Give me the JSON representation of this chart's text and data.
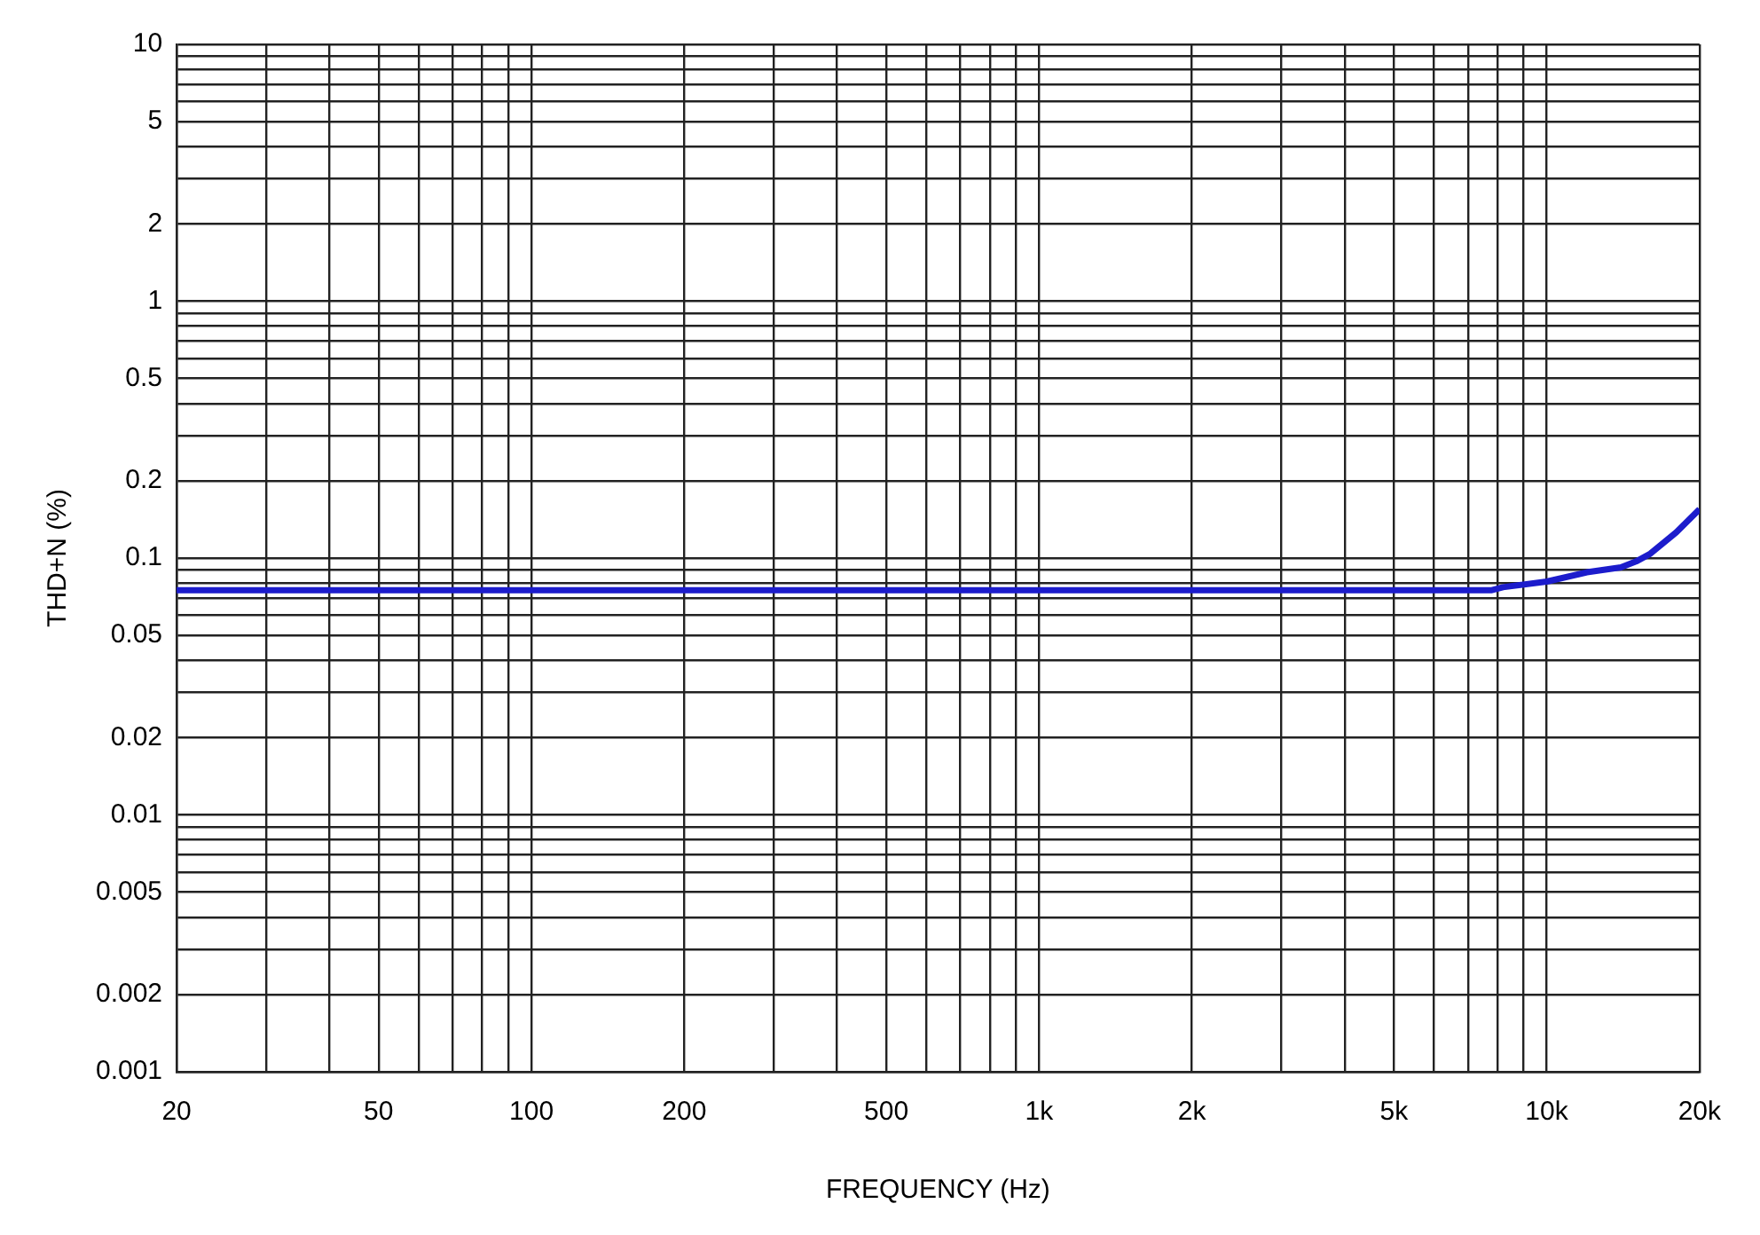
{
  "chart_data": {
    "type": "line",
    "xlabel": "FREQUENCY (Hz)",
    "ylabel": "THD+N (%)",
    "log": "xy",
    "grid": true,
    "legend": false,
    "marker": "none",
    "line_style": "solid",
    "xlim": [
      20,
      20000
    ],
    "ylim": [
      0.001,
      10
    ],
    "xticks": [
      20,
      {
        "value": 30,
        "label": null
      },
      {
        "value": 40,
        "label": null
      },
      50,
      {
        "value": 60,
        "label": null
      },
      {
        "value": 70,
        "label": null
      },
      {
        "value": 80,
        "label": null
      },
      {
        "value": 90,
        "label": null
      },
      100,
      200,
      {
        "value": 300,
        "label": null
      },
      {
        "value": 400,
        "label": null
      },
      500,
      {
        "value": 600,
        "label": null
      },
      {
        "value": 700,
        "label": null
      },
      {
        "value": 800,
        "label": null
      },
      {
        "value": 900,
        "label": null
      },
      {
        "value": 1000,
        "label": "1k"
      },
      {
        "value": 2000,
        "label": "2k"
      },
      {
        "value": 3000,
        "label": null
      },
      {
        "value": 4000,
        "label": null
      },
      {
        "value": 5000,
        "label": "5k"
      },
      {
        "value": 6000,
        "label": null
      },
      {
        "value": 7000,
        "label": null
      },
      {
        "value": 8000,
        "label": null
      },
      {
        "value": 9000,
        "label": null
      },
      {
        "value": 10000,
        "label": "10k"
      },
      {
        "value": 20000,
        "label": "20k"
      }
    ],
    "yticks": [
      0.001,
      0.002,
      {
        "value": 0.003,
        "label": null
      },
      {
        "value": 0.004,
        "label": null
      },
      0.005,
      {
        "value": 0.006,
        "label": null
      },
      {
        "value": 0.007,
        "label": null
      },
      {
        "value": 0.008,
        "label": null
      },
      {
        "value": 0.009,
        "label": null
      },
      0.01,
      0.02,
      {
        "value": 0.03,
        "label": null
      },
      {
        "value": 0.04,
        "label": null
      },
      0.05,
      {
        "value": 0.06,
        "label": null
      },
      {
        "value": 0.07,
        "label": null
      },
      {
        "value": 0.08,
        "label": null
      },
      {
        "value": 0.09,
        "label": null
      },
      0.1,
      0.2,
      {
        "value": 0.3,
        "label": null
      },
      {
        "value": 0.4,
        "label": null
      },
      0.5,
      {
        "value": 0.6,
        "label": null
      },
      {
        "value": 0.7,
        "label": null
      },
      {
        "value": 0.8,
        "label": null
      },
      {
        "value": 0.9,
        "label": null
      },
      1,
      2,
      {
        "value": 3,
        "label": null
      },
      {
        "value": 4,
        "label": null
      },
      5,
      {
        "value": 6,
        "label": null
      },
      {
        "value": 7,
        "label": null
      },
      {
        "value": 8,
        "label": null
      },
      {
        "value": 9,
        "label": null
      },
      10
    ],
    "series": [
      {
        "color": "#1c1ccc",
        "x": [
          20,
          500,
          5000,
          7800,
          8200,
          10000,
          12000,
          14000,
          15000,
          16000,
          18000,
          20000
        ],
        "values": [
          0.075,
          0.075,
          0.075,
          0.075,
          0.077,
          0.081,
          0.088,
          0.092,
          0.097,
          0.104,
          0.126,
          0.155
        ]
      }
    ]
  }
}
